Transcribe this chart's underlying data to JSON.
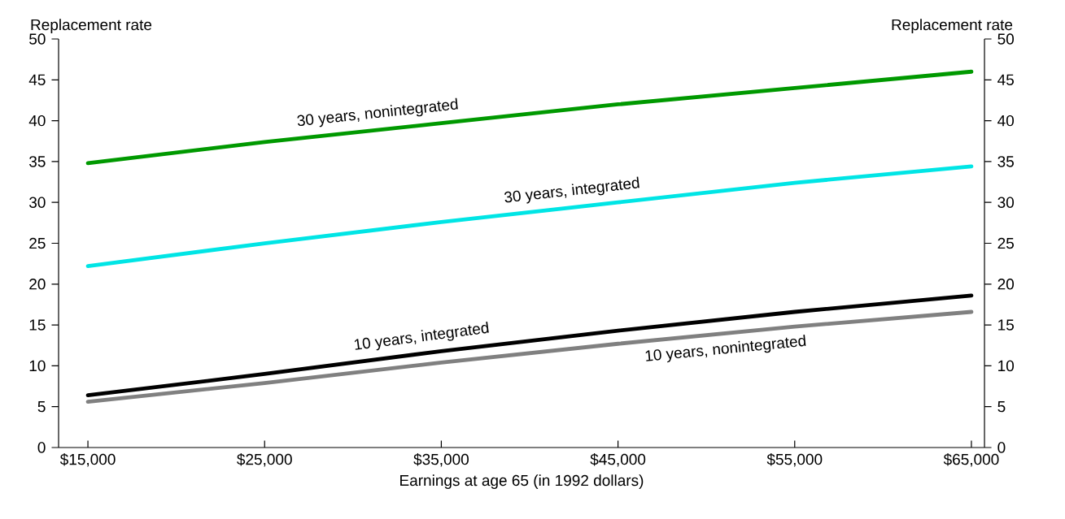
{
  "chart_data": {
    "type": "line",
    "xlabel": "Earnings at age 65 (in 1992 dollars)",
    "ylabel": "Replacement rate",
    "y2label": "Replacement rate",
    "x": [
      15000,
      25000,
      35000,
      45000,
      55000,
      65000
    ],
    "series": [
      {
        "name": "30 years, nonintegrated",
        "color": "#009900",
        "values": [
          34.8,
          37.4,
          39.7,
          42.0,
          44.0,
          46.0
        ]
      },
      {
        "name": "30 years, integrated",
        "color": "#00e5e5",
        "values": [
          22.2,
          25.0,
          27.6,
          30.0,
          32.4,
          34.4
        ]
      },
      {
        "name": "10 years, integrated",
        "color": "#000000",
        "values": [
          6.4,
          9.0,
          11.8,
          14.3,
          16.6,
          18.6
        ]
      },
      {
        "name": "10 years, nonintegrated",
        "color": "#808080",
        "values": [
          5.6,
          7.9,
          10.4,
          12.7,
          14.8,
          16.6
        ]
      }
    ],
    "xlim": [
      13340,
      65740
    ],
    "xticks": [
      {
        "value": 15000,
        "label": "$15,000"
      },
      {
        "value": 25000,
        "label": "$25,000"
      },
      {
        "value": 35000,
        "label": "$35,000"
      },
      {
        "value": 45000,
        "label": "$45,000"
      },
      {
        "value": 55000,
        "label": "$55,000"
      },
      {
        "value": 65000,
        "label": "$65,000"
      }
    ],
    "ylim": [
      0,
      50
    ],
    "yticks": [
      0,
      5,
      10,
      15,
      20,
      25,
      30,
      35,
      40,
      45,
      50
    ],
    "y2lim": [
      0,
      50
    ],
    "y2ticks": [
      0,
      5,
      10,
      15,
      20,
      25,
      30,
      35,
      40,
      45,
      50
    ],
    "grid": false,
    "legend": false,
    "marker": "none",
    "line_style": "solid"
  }
}
